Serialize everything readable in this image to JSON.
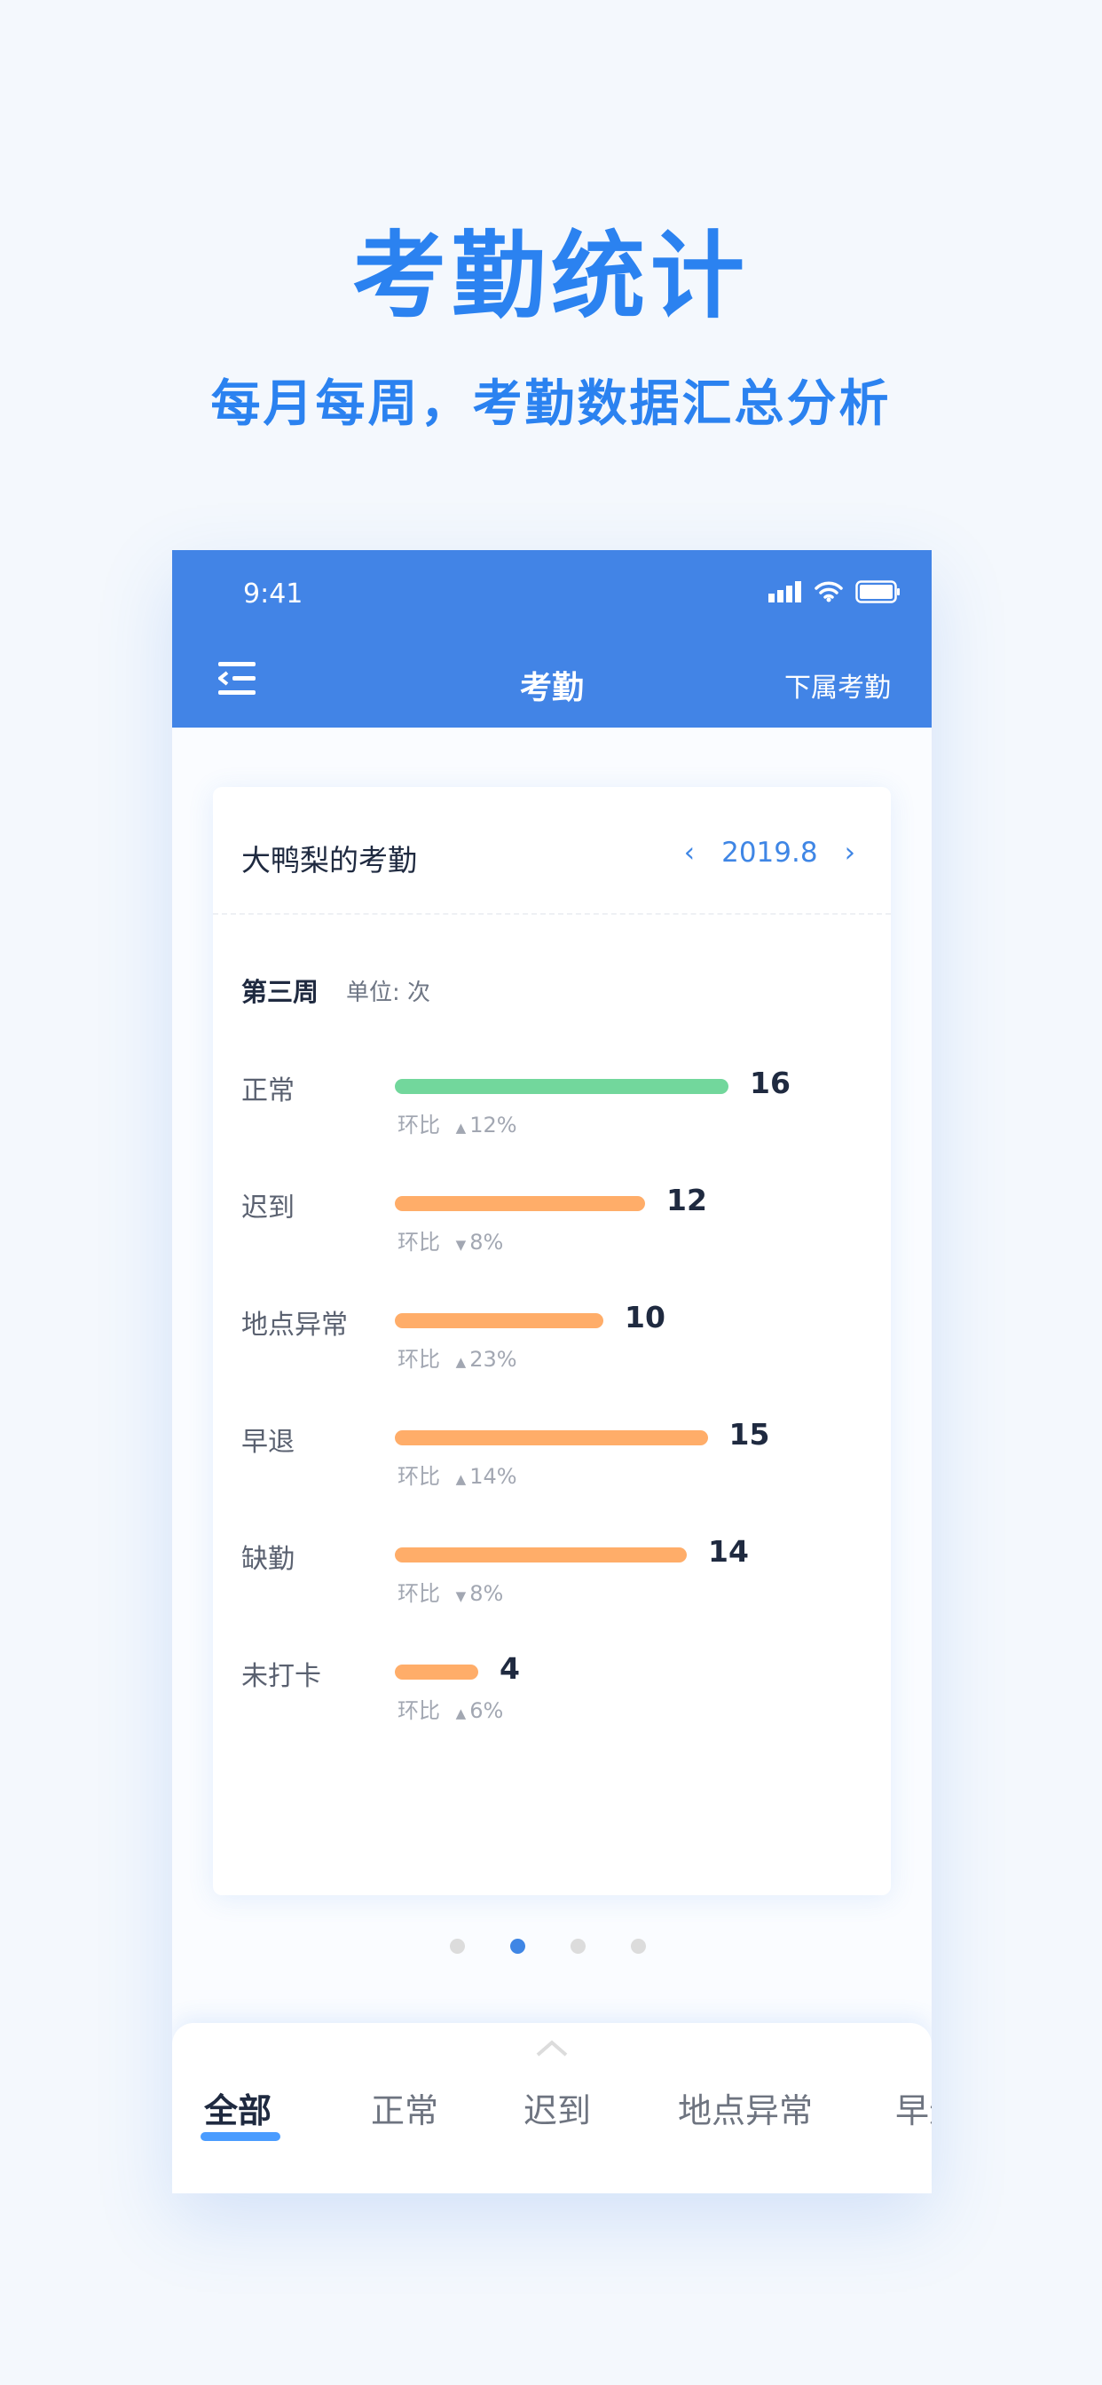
{
  "hero": {
    "title": "考勤统计",
    "subtitle": "每月每周，考勤数据汇总分析"
  },
  "status_bar": {
    "time": "9:41"
  },
  "nav": {
    "title": "考勤",
    "right_action": "下属考勤"
  },
  "card": {
    "name": "大鸭梨的考勤",
    "month": "2019.8",
    "prev": "‹",
    "next": "›",
    "week": "第三周",
    "unit": "单位: 次",
    "compare_label": "环比",
    "rows": [
      {
        "label": "正常",
        "value": 16,
        "change": "12%",
        "direction": "up",
        "color": "#72d79c"
      },
      {
        "label": "迟到",
        "value": 12,
        "change": "8%",
        "direction": "down",
        "color": "#ffad69"
      },
      {
        "label": "地点异常",
        "value": 10,
        "change": "23%",
        "direction": "up",
        "color": "#ffad69"
      },
      {
        "label": "早退",
        "value": 15,
        "change": "14%",
        "direction": "up",
        "color": "#ffad69"
      },
      {
        "label": "缺勤",
        "value": 14,
        "change": "8%",
        "direction": "down",
        "color": "#ffad69"
      },
      {
        "label": "未打卡",
        "value": 4,
        "change": "6%",
        "direction": "up",
        "color": "#ffad69"
      }
    ]
  },
  "pager": {
    "count": 4,
    "active": 1
  },
  "tabs": [
    "全部",
    "正常",
    "迟到",
    "地点异常",
    "早退"
  ],
  "active_tab": 0
}
